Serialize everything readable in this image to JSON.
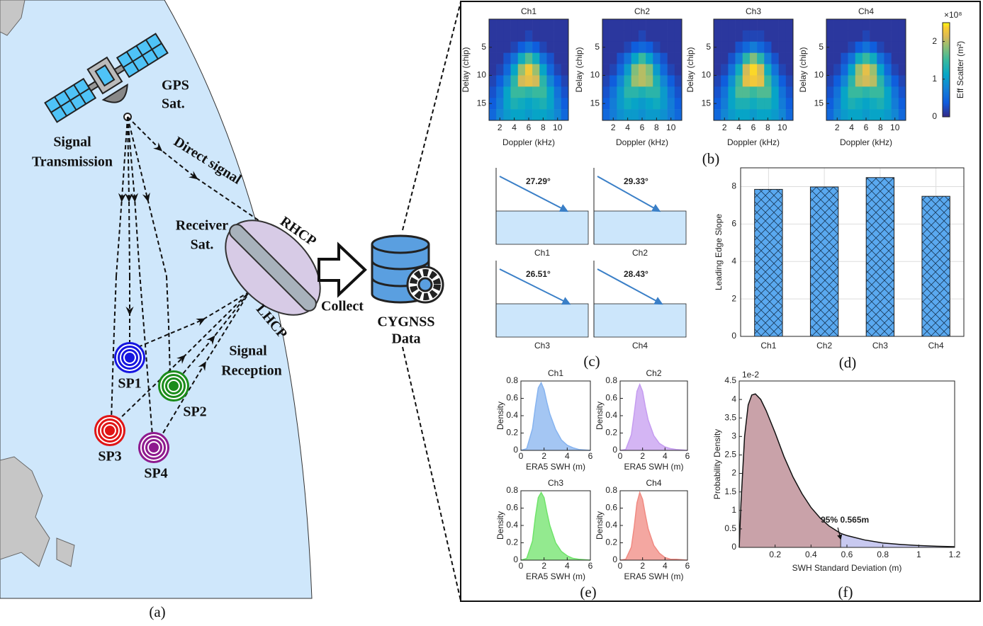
{
  "diagram": {
    "gps": [
      "GPS",
      "Sat."
    ],
    "transmission": [
      "Signal",
      "Transmission"
    ],
    "direct": "Direct signal",
    "receiver": [
      "Receiver",
      "Sat."
    ],
    "rhcp": "RHCP",
    "lhcp": "LHCP",
    "reception": [
      "Signal",
      "Reception"
    ],
    "sps": [
      "SP1",
      "SP2",
      "SP3",
      "SP4"
    ],
    "collect": "Collect",
    "cygnss": [
      "CYGNSS",
      "Data"
    ]
  },
  "panel_labels": [
    "(a)",
    "(b)",
    "(c)",
    "(d)",
    "(e)",
    "(f)"
  ],
  "chart_data": [
    {
      "type": "heatmap",
      "title": "Ch1",
      "xlabel": "Doppler (kHz)",
      "ylabel": "Delay (chip)",
      "x": [
        1,
        2,
        3,
        4,
        5,
        6,
        7,
        8,
        9,
        10,
        11
      ],
      "y": [
        1,
        3,
        5,
        7,
        9,
        11,
        13,
        15,
        17
      ],
      "xlim": [
        0.5,
        11.5
      ],
      "ylim": [
        0,
        18
      ],
      "y_reversed": true,
      "xticks": [
        2,
        4,
        6,
        8,
        10
      ],
      "yticks": [
        5,
        10,
        15
      ],
      "clim": [
        0,
        2.5
      ],
      "z": [
        [
          0.1,
          0.1,
          0.1,
          0.1,
          0.1,
          0.1,
          0.1,
          0.1,
          0.1,
          0.1,
          0.1
        ],
        [
          0.1,
          0.1,
          0.1,
          0.1,
          0.1,
          0.2,
          0.1,
          0.1,
          0.1,
          0.1,
          0.1
        ],
        [
          0.1,
          0.1,
          0.1,
          0.2,
          0.4,
          0.6,
          0.4,
          0.2,
          0.1,
          0.1,
          0.1
        ],
        [
          0.1,
          0.1,
          0.3,
          0.6,
          1.2,
          1.6,
          1.2,
          0.6,
          0.3,
          0.1,
          0.1
        ],
        [
          0.1,
          0.2,
          0.5,
          1.1,
          1.9,
          2.3,
          1.9,
          1.1,
          0.5,
          0.2,
          0.1
        ],
        [
          0.2,
          0.4,
          0.8,
          1.4,
          2.1,
          2.2,
          2.1,
          1.4,
          0.8,
          0.4,
          0.2
        ],
        [
          0.3,
          0.6,
          1.1,
          1.5,
          1.5,
          1.4,
          1.5,
          1.5,
          1.1,
          0.6,
          0.3
        ],
        [
          0.4,
          0.7,
          1.1,
          1.3,
          1.2,
          1.1,
          1.2,
          1.3,
          1.1,
          0.7,
          0.4
        ],
        [
          0.5,
          0.8,
          1.0,
          1.1,
          1.1,
          1.0,
          1.1,
          1.1,
          1.0,
          0.8,
          0.5
        ]
      ]
    },
    {
      "type": "heatmap",
      "title": "Ch2",
      "xlabel": "Doppler (kHz)",
      "ylabel": "Delay (chip)",
      "x": [
        1,
        2,
        3,
        4,
        5,
        6,
        7,
        8,
        9,
        10,
        11
      ],
      "y": [
        1,
        3,
        5,
        7,
        9,
        11,
        13,
        15,
        17
      ],
      "xlim": [
        0.5,
        11.5
      ],
      "ylim": [
        0,
        18
      ],
      "y_reversed": true,
      "xticks": [
        2,
        4,
        6,
        8,
        10
      ],
      "yticks": [
        5,
        10,
        15
      ],
      "clim": [
        0,
        2.5
      ],
      "z": [
        [
          0.1,
          0.1,
          0.1,
          0.1,
          0.1,
          0.1,
          0.1,
          0.1,
          0.1,
          0.1,
          0.1
        ],
        [
          0.1,
          0.1,
          0.1,
          0.1,
          0.1,
          0.2,
          0.1,
          0.1,
          0.1,
          0.1,
          0.1
        ],
        [
          0.1,
          0.1,
          0.1,
          0.2,
          0.4,
          0.5,
          0.4,
          0.2,
          0.1,
          0.1,
          0.1
        ],
        [
          0.1,
          0.1,
          0.3,
          0.6,
          1.1,
          1.5,
          1.1,
          0.6,
          0.3,
          0.1,
          0.1
        ],
        [
          0.1,
          0.2,
          0.5,
          1.0,
          1.8,
          2.0,
          1.8,
          1.0,
          0.5,
          0.2,
          0.1
        ],
        [
          0.2,
          0.4,
          0.8,
          1.3,
          1.9,
          2.0,
          1.9,
          1.3,
          0.8,
          0.4,
          0.2
        ],
        [
          0.3,
          0.6,
          1.0,
          1.4,
          1.4,
          1.3,
          1.4,
          1.4,
          1.0,
          0.6,
          0.3
        ],
        [
          0.4,
          0.7,
          1.0,
          1.2,
          1.1,
          1.0,
          1.1,
          1.2,
          1.0,
          0.7,
          0.4
        ],
        [
          0.5,
          0.7,
          0.9,
          1.0,
          1.0,
          0.9,
          1.0,
          1.0,
          0.9,
          0.7,
          0.5
        ]
      ]
    },
    {
      "type": "heatmap",
      "title": "Ch3",
      "xlabel": "Doppler (kHz)",
      "ylabel": "Delay (chip)",
      "x": [
        1,
        2,
        3,
        4,
        5,
        6,
        7,
        8,
        9,
        10,
        11
      ],
      "y": [
        1,
        3,
        5,
        7,
        9,
        11,
        13,
        15,
        17
      ],
      "xlim": [
        0.5,
        11.5
      ],
      "ylim": [
        0,
        18
      ],
      "y_reversed": true,
      "xticks": [
        2,
        4,
        6,
        8,
        10
      ],
      "yticks": [
        5,
        10,
        15
      ],
      "clim": [
        0,
        2.5
      ],
      "z": [
        [
          0.1,
          0.1,
          0.1,
          0.1,
          0.1,
          0.1,
          0.1,
          0.1,
          0.1,
          0.1,
          0.1
        ],
        [
          0.1,
          0.1,
          0.1,
          0.1,
          0.2,
          0.2,
          0.2,
          0.1,
          0.1,
          0.1,
          0.1
        ],
        [
          0.1,
          0.1,
          0.1,
          0.3,
          0.5,
          0.7,
          0.5,
          0.3,
          0.1,
          0.1,
          0.1
        ],
        [
          0.1,
          0.1,
          0.3,
          0.7,
          1.4,
          1.8,
          1.4,
          0.7,
          0.3,
          0.1,
          0.1
        ],
        [
          0.1,
          0.2,
          0.6,
          1.2,
          2.1,
          2.4,
          2.1,
          1.2,
          0.6,
          0.2,
          0.1
        ],
        [
          0.2,
          0.4,
          0.9,
          1.5,
          2.2,
          2.3,
          2.2,
          1.5,
          0.9,
          0.4,
          0.2
        ],
        [
          0.3,
          0.6,
          1.1,
          1.6,
          1.6,
          1.5,
          1.6,
          1.6,
          1.1,
          0.6,
          0.3
        ],
        [
          0.4,
          0.7,
          1.1,
          1.3,
          1.3,
          1.2,
          1.3,
          1.3,
          1.1,
          0.7,
          0.4
        ],
        [
          0.5,
          0.8,
          1.0,
          1.1,
          1.1,
          1.0,
          1.1,
          1.1,
          1.0,
          0.8,
          0.5
        ]
      ]
    },
    {
      "type": "heatmap",
      "title": "Ch4",
      "xlabel": "Doppler (kHz)",
      "ylabel": "Delay (chip)",
      "x": [
        1,
        2,
        3,
        4,
        5,
        6,
        7,
        8,
        9,
        10,
        11
      ],
      "y": [
        1,
        3,
        5,
        7,
        9,
        11,
        13,
        15,
        17
      ],
      "xlim": [
        0.5,
        11.5
      ],
      "ylim": [
        0,
        18
      ],
      "y_reversed": true,
      "xticks": [
        2,
        4,
        6,
        8,
        10
      ],
      "yticks": [
        5,
        10,
        15
      ],
      "clim": [
        0,
        2.5
      ],
      "z": [
        [
          0.1,
          0.1,
          0.1,
          0.1,
          0.1,
          0.1,
          0.1,
          0.1,
          0.1,
          0.1,
          0.1
        ],
        [
          0.1,
          0.1,
          0.1,
          0.1,
          0.1,
          0.2,
          0.1,
          0.1,
          0.1,
          0.1,
          0.1
        ],
        [
          0.1,
          0.1,
          0.1,
          0.2,
          0.4,
          0.6,
          0.4,
          0.2,
          0.1,
          0.1,
          0.1
        ],
        [
          0.1,
          0.1,
          0.3,
          0.6,
          1.2,
          1.5,
          1.2,
          0.6,
          0.3,
          0.1,
          0.1
        ],
        [
          0.1,
          0.2,
          0.5,
          1.1,
          1.9,
          2.2,
          1.9,
          1.1,
          0.5,
          0.2,
          0.1
        ],
        [
          0.2,
          0.4,
          0.8,
          1.4,
          2.0,
          2.1,
          2.0,
          1.4,
          0.8,
          0.4,
          0.2
        ],
        [
          0.3,
          0.6,
          1.1,
          1.5,
          1.5,
          1.4,
          1.5,
          1.5,
          1.1,
          0.6,
          0.3
        ],
        [
          0.4,
          0.7,
          1.1,
          1.3,
          1.2,
          1.1,
          1.2,
          1.3,
          1.1,
          0.7,
          0.4
        ],
        [
          0.5,
          0.8,
          1.0,
          1.1,
          1.1,
          1.0,
          1.1,
          1.1,
          1.0,
          0.8,
          0.5
        ]
      ],
      "colorbar": {
        "label": "Eff Scatter (m²)",
        "exponent": "×10⁸",
        "ticks": [
          0,
          1,
          2
        ]
      }
    },
    {
      "type": "angle",
      "categories": [
        "Ch1",
        "Ch2",
        "Ch3",
        "Ch4"
      ],
      "values": [
        27.29,
        29.33,
        26.51,
        28.43
      ],
      "value_labels": [
        "27.29°",
        "29.33°",
        "26.51°",
        "28.43°"
      ],
      "color": "#3a7fc7",
      "water_color": "#cce6fb"
    },
    {
      "type": "bar",
      "categories": [
        "Ch1",
        "Ch2",
        "Ch3",
        "Ch4"
      ],
      "values": [
        7.85,
        7.98,
        8.48,
        7.48
      ],
      "ylabel": "Leading Edge Slope",
      "ylim": [
        0,
        9
      ],
      "yticks": [
        0,
        2,
        4,
        6,
        8
      ],
      "grid": true,
      "color": "#5aa9f0",
      "hatch": true
    },
    {
      "type": "area",
      "title": "Ch1",
      "xlabel": "ERA5 SWH (m)",
      "ylabel": "Density",
      "color": "#86b3ef",
      "x": [
        0,
        0.5,
        1,
        1.25,
        1.5,
        1.75,
        2,
        2.25,
        2.5,
        3,
        3.5,
        4,
        4.5,
        5,
        6
      ],
      "values": [
        0,
        0.02,
        0.25,
        0.5,
        0.72,
        0.78,
        0.7,
        0.55,
        0.42,
        0.24,
        0.12,
        0.06,
        0.03,
        0.01,
        0
      ],
      "xlim": [
        0,
        6
      ],
      "ylim": [
        0,
        0.8
      ],
      "xticks": [
        0,
        2,
        4,
        6
      ],
      "yticks": [
        0,
        0.2,
        0.4,
        0.6,
        0.8
      ]
    },
    {
      "type": "area",
      "title": "Ch2",
      "xlabel": "ERA5 SWH (m)",
      "ylabel": "Density",
      "color": "#c59cf0",
      "x": [
        0,
        0.5,
        1,
        1.25,
        1.5,
        1.75,
        2,
        2.25,
        2.5,
        3,
        3.5,
        4,
        4.5,
        5,
        6
      ],
      "values": [
        0,
        0.01,
        0.18,
        0.42,
        0.68,
        0.76,
        0.68,
        0.5,
        0.35,
        0.17,
        0.08,
        0.04,
        0.02,
        0.01,
        0
      ],
      "xlim": [
        0,
        6
      ],
      "ylim": [
        0,
        0.8
      ],
      "xticks": [
        0,
        2,
        4,
        6
      ],
      "yticks": [
        0,
        0.2,
        0.4,
        0.6,
        0.8
      ]
    },
    {
      "type": "area",
      "title": "Ch3",
      "xlabel": "ERA5 SWH (m)",
      "ylabel": "Density",
      "color": "#6fe36a",
      "x": [
        0,
        0.5,
        1,
        1.25,
        1.5,
        1.75,
        2,
        2.25,
        2.5,
        3,
        3.5,
        4,
        4.5,
        5,
        6
      ],
      "values": [
        0,
        0.02,
        0.22,
        0.5,
        0.72,
        0.78,
        0.72,
        0.55,
        0.4,
        0.2,
        0.1,
        0.05,
        0.02,
        0.01,
        0
      ],
      "xlim": [
        0,
        6
      ],
      "ylim": [
        0,
        0.8
      ],
      "xticks": [
        0,
        2,
        4,
        6
      ],
      "yticks": [
        0,
        0.2,
        0.4,
        0.6,
        0.8
      ]
    },
    {
      "type": "area",
      "title": "Ch4",
      "xlabel": "ERA5 SWH (m)",
      "ylabel": "Density",
      "color": "#f08a82",
      "x": [
        0,
        0.5,
        1,
        1.25,
        1.5,
        1.75,
        2,
        2.25,
        2.5,
        3,
        3.5,
        4,
        4.5,
        5,
        6
      ],
      "values": [
        0,
        0.01,
        0.15,
        0.38,
        0.66,
        0.78,
        0.7,
        0.52,
        0.36,
        0.17,
        0.08,
        0.03,
        0.01,
        0.01,
        0
      ],
      "xlim": [
        0,
        6
      ],
      "ylim": [
        0,
        0.8
      ],
      "xticks": [
        0,
        2,
        4,
        6
      ],
      "yticks": [
        0,
        0.2,
        0.4,
        0.6,
        0.8
      ]
    },
    {
      "type": "pdf",
      "xlabel": "SWH Standard Deviation (m)",
      "ylabel": "Probability Density",
      "y_exponent": "1e-2",
      "x": [
        0,
        0.01,
        0.03,
        0.05,
        0.07,
        0.09,
        0.12,
        0.15,
        0.2,
        0.25,
        0.3,
        0.35,
        0.4,
        0.45,
        0.5,
        0.565,
        0.6,
        0.7,
        0.8,
        0.9,
        1.0,
        1.1,
        1.2
      ],
      "values": [
        0,
        1.2,
        3.0,
        3.85,
        4.12,
        4.15,
        4.0,
        3.7,
        3.1,
        2.45,
        1.9,
        1.45,
        1.08,
        0.8,
        0.58,
        0.38,
        0.32,
        0.2,
        0.12,
        0.08,
        0.05,
        0.03,
        0.02
      ],
      "threshold": 0.565,
      "annotation": "95% 0.565m",
      "color": "#c9a2a9",
      "tail_color": "#c8c9f0",
      "xlim": [
        0,
        1.2
      ],
      "ylim": [
        0,
        4.5
      ],
      "xticks": [
        0.2,
        0.4,
        0.6,
        0.8,
        1,
        1.2
      ],
      "yticks": [
        0,
        0.5,
        1,
        1.5,
        2,
        2.5,
        3,
        3.5,
        4,
        4.5
      ]
    }
  ]
}
